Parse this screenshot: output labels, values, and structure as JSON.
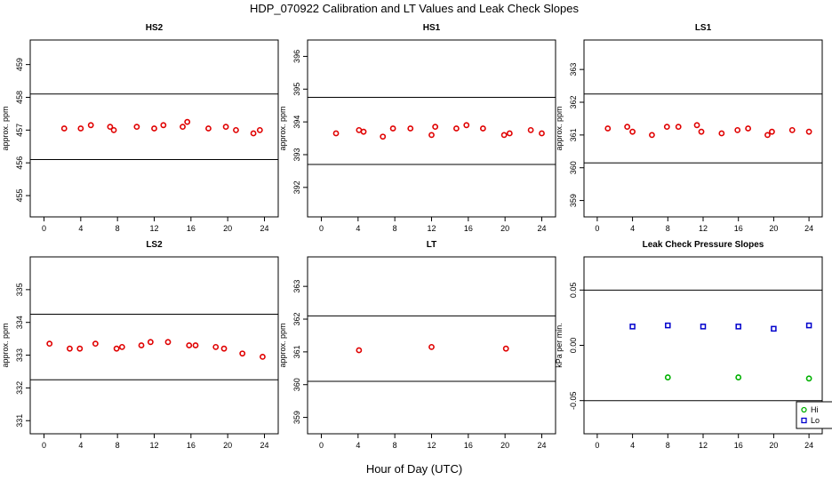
{
  "page": {
    "title": "HDP_070922  Calibration and LT Values and Leak Check Slopes",
    "xlabel": "Hour of Day (UTC)"
  },
  "chart_data": [
    {
      "type": "scatter",
      "title": "HS2",
      "ylabel": "approx. ppm",
      "xlim": [
        -1.5,
        25.5
      ],
      "xticks": [
        0,
        4,
        8,
        12,
        16,
        20,
        24
      ],
      "ylim": [
        454.35,
        459.75
      ],
      "yticks": [
        455,
        456,
        457,
        458,
        459
      ],
      "hlines": [
        458.1,
        456.1
      ],
      "series": [
        {
          "color": "#e00000",
          "marker": "circle",
          "x": [
            2.2,
            4.0,
            5.1,
            7.2,
            7.6,
            10.1,
            12.0,
            13.0,
            15.1,
            15.6,
            17.9,
            19.8,
            20.9,
            22.8,
            23.5
          ],
          "y": [
            457.05,
            457.05,
            457.15,
            457.1,
            457.0,
            457.1,
            457.05,
            457.15,
            457.1,
            457.25,
            457.05,
            457.1,
            457.0,
            456.9,
            457.0
          ]
        }
      ]
    },
    {
      "type": "scatter",
      "title": "HS1",
      "ylabel": "approx. ppm",
      "xlim": [
        -1.5,
        25.5
      ],
      "xticks": [
        0,
        4,
        8,
        12,
        16,
        20,
        24
      ],
      "ylim": [
        391.1,
        396.5
      ],
      "yticks": [
        392,
        393,
        394,
        395,
        396
      ],
      "hlines": [
        394.75,
        392.7
      ],
      "series": [
        {
          "color": "#e00000",
          "marker": "circle",
          "x": [
            1.6,
            4.1,
            4.6,
            6.7,
            7.8,
            9.7,
            12.0,
            12.4,
            14.7,
            15.8,
            17.6,
            19.9,
            20.5,
            22.8,
            24.0
          ],
          "y": [
            393.65,
            393.75,
            393.7,
            393.55,
            393.8,
            393.8,
            393.6,
            393.85,
            393.8,
            393.9,
            393.8,
            393.6,
            393.65,
            393.75,
            393.65
          ]
        }
      ]
    },
    {
      "type": "scatter",
      "title": "LS1",
      "ylabel": "approx. ppm",
      "xlim": [
        -1.5,
        25.5
      ],
      "xticks": [
        0,
        4,
        8,
        12,
        16,
        20,
        24
      ],
      "ylim": [
        358.5,
        363.9
      ],
      "yticks": [
        359,
        360,
        361,
        362,
        363
      ],
      "hlines": [
        362.25,
        360.15
      ],
      "series": [
        {
          "color": "#e00000",
          "marker": "circle",
          "x": [
            1.2,
            3.4,
            4.0,
            6.2,
            7.9,
            9.2,
            11.3,
            11.8,
            14.1,
            15.9,
            17.1,
            19.3,
            19.8,
            22.1,
            24.0
          ],
          "y": [
            361.2,
            361.25,
            361.1,
            361.0,
            361.25,
            361.25,
            361.3,
            361.1,
            361.05,
            361.15,
            361.2,
            361.0,
            361.1,
            361.15,
            361.1
          ]
        }
      ]
    },
    {
      "type": "scatter",
      "title": "LS2",
      "ylabel": "approx. ppm",
      "xlim": [
        -1.5,
        25.5
      ],
      "xticks": [
        0,
        4,
        8,
        12,
        16,
        20,
        24
      ],
      "ylim": [
        330.6,
        336.0
      ],
      "yticks": [
        331,
        332,
        333,
        334,
        335
      ],
      "hlines": [
        334.25,
        332.25
      ],
      "series": [
        {
          "color": "#e00000",
          "marker": "circle",
          "x": [
            0.6,
            2.8,
            3.9,
            5.6,
            7.9,
            8.5,
            10.6,
            11.6,
            13.5,
            15.8,
            16.5,
            18.7,
            19.6,
            21.6,
            23.8
          ],
          "y": [
            333.35,
            333.2,
            333.2,
            333.35,
            333.2,
            333.25,
            333.3,
            333.4,
            333.4,
            333.3,
            333.3,
            333.25,
            333.2,
            333.05,
            332.95
          ]
        }
      ]
    },
    {
      "type": "scatter",
      "title": "LT",
      "ylabel": "approx. ppm",
      "xlim": [
        -1.5,
        25.5
      ],
      "xticks": [
        0,
        4,
        8,
        12,
        16,
        20,
        24
      ],
      "ylim": [
        358.5,
        363.9
      ],
      "yticks": [
        359,
        360,
        361,
        362,
        363
      ],
      "hlines": [
        362.1,
        360.1
      ],
      "series": [
        {
          "color": "#e00000",
          "marker": "circle",
          "x": [
            4.1,
            12.0,
            20.1
          ],
          "y": [
            361.05,
            361.15,
            361.1
          ]
        }
      ]
    },
    {
      "type": "scatter",
      "title": "Leak Check Pressure Slopes",
      "ylabel": "kPa per min.",
      "xlim": [
        -1.5,
        25.5
      ],
      "xticks": [
        0,
        4,
        8,
        12,
        16,
        20,
        24
      ],
      "ylim": [
        -0.08,
        0.08
      ],
      "yticks": [
        -0.05,
        0.0,
        0.05
      ],
      "ytick_labels": [
        "-0.05",
        "0.00",
        "0.05"
      ],
      "hlines": [
        0.05,
        -0.05
      ],
      "legend": "bottom-right",
      "series": [
        {
          "name": "Hi",
          "color": "#00b000",
          "marker": "circle",
          "x": [
            8.0,
            16.0,
            24.0
          ],
          "y": [
            -0.029,
            -0.029,
            -0.03
          ]
        },
        {
          "name": "Lo",
          "color": "#0000cc",
          "marker": "square",
          "x": [
            4.0,
            8.0,
            12.0,
            16.0,
            20.0,
            24.0
          ],
          "y": [
            0.017,
            0.018,
            0.017,
            0.017,
            0.015,
            0.018
          ]
        }
      ]
    }
  ]
}
